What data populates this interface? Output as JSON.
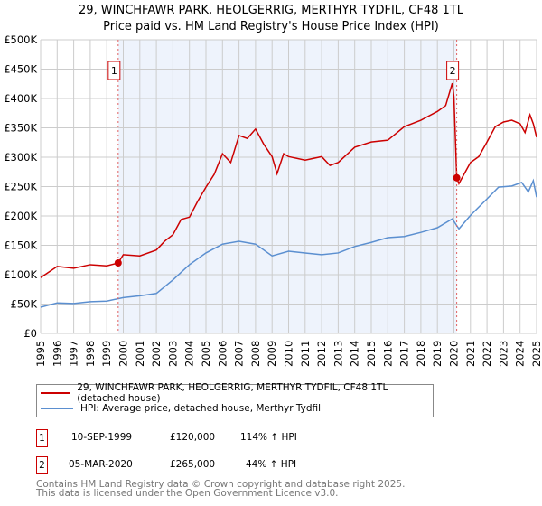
{
  "title": "29, WINCHFAWR PARK, HEOLGERRIG, MERTHYR TYDFIL, CF48 1TL",
  "subtitle": "Price paid vs. HM Land Registry's House Price Index (HPI)",
  "chart_data": {
    "type": "line",
    "ylim": [
      0,
      500000
    ],
    "xlim": [
      1995,
      2025
    ],
    "yticks": [
      {
        "v": 0,
        "l": "£0"
      },
      {
        "v": 50000,
        "l": "£50K"
      },
      {
        "v": 100000,
        "l": "£100K"
      },
      {
        "v": 150000,
        "l": "£150K"
      },
      {
        "v": 200000,
        "l": "£200K"
      },
      {
        "v": 250000,
        "l": "£250K"
      },
      {
        "v": 300000,
        "l": "£300K"
      },
      {
        "v": 350000,
        "l": "£350K"
      },
      {
        "v": 400000,
        "l": "£400K"
      },
      {
        "v": 450000,
        "l": "£450K"
      },
      {
        "v": 500000,
        "l": "£500K"
      }
    ],
    "xticks": [
      "1995",
      "1996",
      "1997",
      "1998",
      "1999",
      "2000",
      "2001",
      "2002",
      "2003",
      "2004",
      "2005",
      "2006",
      "2007",
      "2008",
      "2009",
      "2010",
      "2011",
      "2012",
      "2013",
      "2014",
      "2015",
      "2016",
      "2017",
      "2018",
      "2019",
      "2020",
      "2021",
      "2022",
      "2023",
      "2024",
      "2025"
    ],
    "grid": true,
    "series": [
      {
        "name": "29, WINCHFAWR PARK, HEOLGERRIG, MERTHYR TYDFIL, CF48 1TL (detached house)",
        "color": "#cc0000",
        "x": [
          1995,
          1996,
          1997,
          1998,
          1999,
          1999.69,
          2000,
          2001,
          2002,
          2002.5,
          2003,
          2003.5,
          2004,
          2004.5,
          2005,
          2005.5,
          2006,
          2006.5,
          2007,
          2007.5,
          2008,
          2008.5,
          2009,
          2009.3,
          2009.7,
          2010,
          2011,
          2012,
          2012.5,
          2013,
          2014,
          2015,
          2016,
          2017,
          2018,
          2019,
          2019.5,
          2019.9,
          2020.0,
          2020.17,
          2020.3,
          2021,
          2021.5,
          2022,
          2022.5,
          2023,
          2023.5,
          2024,
          2024.3,
          2024.6,
          2024.8,
          2025
        ],
        "y": [
          95000,
          114000,
          111000,
          117000,
          115000,
          120000,
          134000,
          132000,
          142000,
          157000,
          168000,
          194000,
          198000,
          225000,
          249000,
          271000,
          306000,
          291000,
          337000,
          332000,
          348000,
          322000,
          301000,
          272000,
          306000,
          301000,
          295000,
          301000,
          286000,
          291000,
          317000,
          326000,
          329000,
          352000,
          363000,
          378000,
          388000,
          426000,
          403000,
          265000,
          255000,
          291000,
          301000,
          326000,
          352000,
          360000,
          363000,
          357000,
          342000,
          372000,
          357000,
          334000
        ]
      },
      {
        "name": "HPI: Average price, detached house, Merthyr Tydfil",
        "color": "#5b8fd0",
        "x": [
          1995,
          1996,
          1997,
          1998,
          1999,
          2000,
          2001,
          2002,
          2003,
          2004,
          2005,
          2006,
          2007,
          2008,
          2009,
          2010,
          2011,
          2012,
          2013,
          2014,
          2015,
          2016,
          2017,
          2018,
          2019,
          2019.9,
          2020.3,
          2021,
          2022,
          2022.7,
          2023.5,
          2024.1,
          2024.5,
          2024.8,
          2025
        ],
        "y": [
          44600,
          52000,
          51000,
          54000,
          55000,
          61000,
          64000,
          68000,
          91000,
          117000,
          137000,
          152000,
          157000,
          152000,
          132000,
          140000,
          137000,
          134000,
          137000,
          148000,
          155000,
          163000,
          165000,
          172000,
          180000,
          195000,
          178000,
          201000,
          229000,
          249000,
          251000,
          257000,
          241000,
          260000,
          232000
        ]
      }
    ],
    "annotations": [
      {
        "label": "1",
        "x": 1999.69,
        "y": 120000
      },
      {
        "label": "2",
        "x": 2020.17,
        "y": 265000
      }
    ]
  },
  "sales": [
    {
      "num": "1",
      "date": "10-SEP-1999",
      "price": "£120,000",
      "hpi": "114% ↑ HPI"
    },
    {
      "num": "2",
      "date": "05-MAR-2020",
      "price": "£265,000",
      "hpi": "44% ↑ HPI"
    }
  ],
  "footer": [
    "Contains HM Land Registry data © Crown copyright and database right 2025.",
    "This data is licensed under the Open Government Licence v3.0."
  ]
}
